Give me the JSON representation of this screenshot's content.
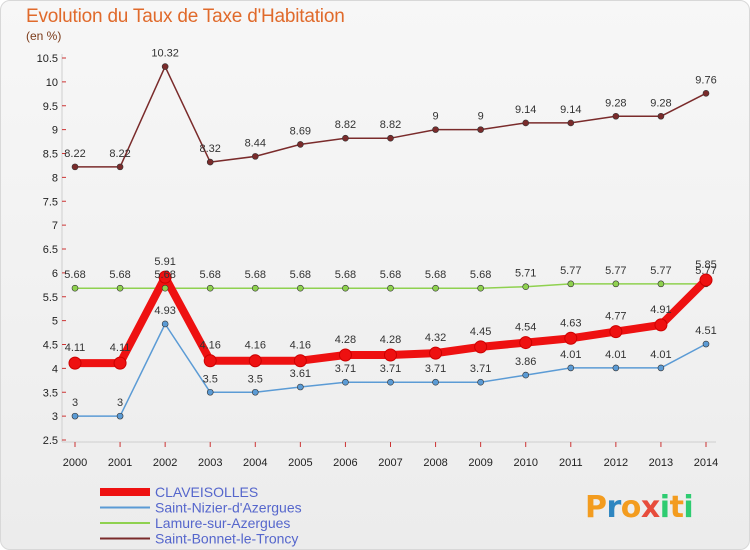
{
  "header": {
    "title": "Evolution du Taux de Taxe d'Habitation",
    "unit": "(en %)"
  },
  "logo": {
    "letters": [
      "P",
      "r",
      "o",
      "x",
      "i",
      "t",
      "i"
    ],
    "colors": [
      "#f39c1f",
      "#2e86c1",
      "#f39c1f",
      "#e74c3c",
      "#2ecc71",
      "#f39c1f",
      "#2ecc71"
    ]
  },
  "chart_data": {
    "type": "line",
    "x": [
      "2000",
      "2001",
      "2002",
      "2003",
      "2004",
      "2005",
      "2006",
      "2007",
      "2008",
      "2009",
      "2010",
      "2011",
      "2012",
      "2013",
      "2014"
    ],
    "ylim": [
      2.5,
      10.5
    ],
    "yticks": [
      "2.5",
      "3",
      "3.5",
      "4",
      "4.5",
      "5",
      "5.5",
      "6",
      "6.5",
      "7",
      "7.5",
      "8",
      "8.5",
      "9",
      "9.5",
      "10",
      "10.5"
    ],
    "grid": false,
    "legend_position": "bottom-left",
    "series": [
      {
        "name": "CLAVEISOLLES",
        "color": "#ee1111",
        "values": [
          4.11,
          4.11,
          5.91,
          4.16,
          4.16,
          4.16,
          4.28,
          4.28,
          4.32,
          4.45,
          4.54,
          4.63,
          4.77,
          4.91,
          5.85
        ],
        "labels": [
          "4.11",
          "4.11",
          "5.91",
          "4.16",
          "4.16",
          "4.16",
          "4.28",
          "4.28",
          "4.32",
          "4.45",
          "4.54",
          "4.63",
          "4.77",
          "4.91",
          "5.85"
        ]
      },
      {
        "name": "Saint-Nizier-d'Azergues",
        "color": "#5b9bd5",
        "values": [
          3,
          3,
          4.93,
          3.5,
          3.5,
          3.61,
          3.71,
          3.71,
          3.71,
          3.71,
          3.86,
          4.01,
          4.01,
          4.01,
          4.51
        ],
        "labels": [
          "3",
          "3",
          "4.93",
          "3.5",
          "3.5",
          "3.61",
          "3.71",
          "3.71",
          "3.71",
          "3.71",
          "3.86",
          "4.01",
          "4.01",
          "4.01",
          "4.51"
        ]
      },
      {
        "name": "Lamure-sur-Azergues",
        "color": "#8fd14f",
        "values": [
          5.68,
          5.68,
          5.68,
          5.68,
          5.68,
          5.68,
          5.68,
          5.68,
          5.68,
          5.68,
          5.71,
          5.77,
          5.77,
          5.77,
          5.77
        ],
        "labels": [
          "5.68",
          "5.68",
          "5.68",
          "5.68",
          "5.68",
          "5.68",
          "5.68",
          "5.68",
          "5.68",
          "5.68",
          "5.71",
          "5.77",
          "5.77",
          "5.77",
          "5.77"
        ]
      },
      {
        "name": "Saint-Bonnet-le-Troncy",
        "color": "#7a2b2b",
        "values": [
          8.22,
          8.22,
          10.32,
          8.32,
          8.44,
          8.69,
          8.82,
          8.82,
          9,
          9,
          9.14,
          9.14,
          9.28,
          9.28,
          9.76
        ],
        "labels": [
          "8.22",
          "8.22",
          "10.32",
          "8.32",
          "8.44",
          "8.69",
          "8.82",
          "8.82",
          "9",
          "9",
          "9.14",
          "9.14",
          "9.28",
          "9.28",
          "9.76"
        ]
      }
    ]
  }
}
